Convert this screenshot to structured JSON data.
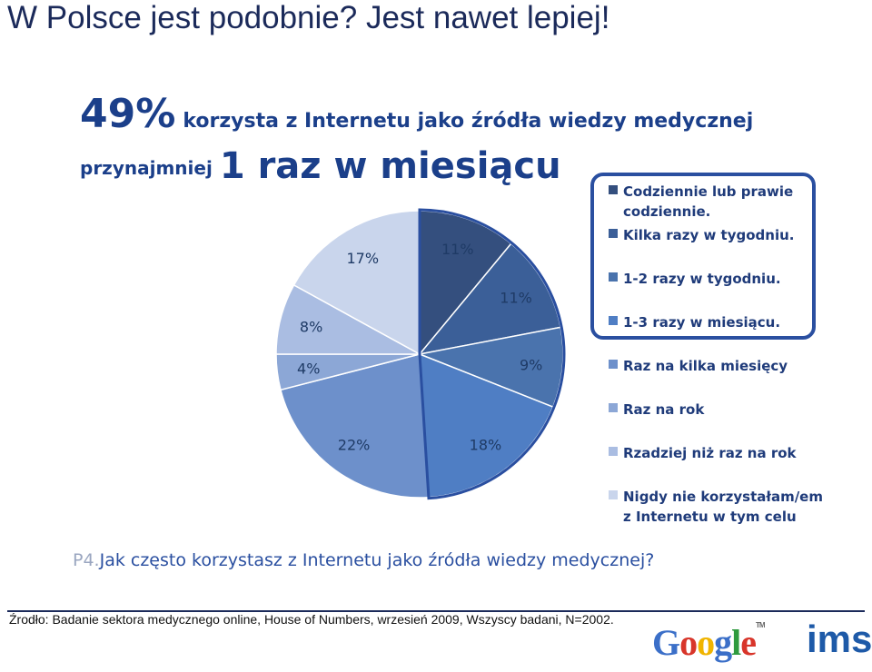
{
  "slide_title": "W Polsce jest podobnie? Jest nawet lepiej!",
  "headline": {
    "big_value": "49%",
    "text": "korzysta z Internetu jako źródła wiedzy medycznej",
    "sub_small": "przynajmniej",
    "sub_big": "1 raz w miesiącu"
  },
  "chart_data": {
    "type": "pie",
    "title": "",
    "slices": [
      {
        "label": "Codziennie lub prawie codziennie.",
        "value": 11,
        "display": "11%",
        "color": "#344f7e"
      },
      {
        "label": "Kilka razy w tygodniu.",
        "value": 11,
        "display": "11%",
        "color": "#3b5f98"
      },
      {
        "label": "1-2 razy w tygodniu.",
        "value": 9,
        "display": "9%",
        "color": "#4a73ad"
      },
      {
        "label": "1-3 razy w miesiącu.",
        "value": 18,
        "display": "18%",
        "color": "#4f7ec4"
      },
      {
        "label": "Raz na kilka miesięcy",
        "value": 22,
        "display": "22%",
        "color": "#6d90cb"
      },
      {
        "label": "Raz na rok",
        "value": 4,
        "display": "4%",
        "color": "#8ca7d6"
      },
      {
        "label": "Rzadziej niż raz na rok",
        "value": 8,
        "display": "8%",
        "color": "#aabde2"
      },
      {
        "label": "Nigdy nie korzystałam/em z Internetu w tym celu",
        "value": 17,
        "display": "17%",
        "color": "#c9d5ec"
      }
    ],
    "highlighted_slices": [
      "Codziennie lub prawie codziennie.",
      "Kilka razy w tygodniu.",
      "1-2 razy w tygodniu.",
      "1-3 razy w miesiącu."
    ],
    "highlight_color": "#2a4fa0",
    "legend_position": "right"
  },
  "question": {
    "number": "P4.",
    "text": "Jak często korzystasz z Internetu jako źródła wiedzy medycznej?"
  },
  "source": "Źrodło: Badanie sektora medycznego online, House of Numbers, wrzesień 2009,  Wszyscy badani, N=2002.",
  "logos": {
    "google": {
      "letters": [
        "G",
        "o",
        "o",
        "g",
        "l",
        "e"
      ],
      "colors": [
        "#3b6fc8",
        "#d8352a",
        "#f0b400",
        "#3b6fc8",
        "#2e9a3e",
        "#d8352a"
      ],
      "tm": "TM"
    },
    "ims": "ims"
  }
}
